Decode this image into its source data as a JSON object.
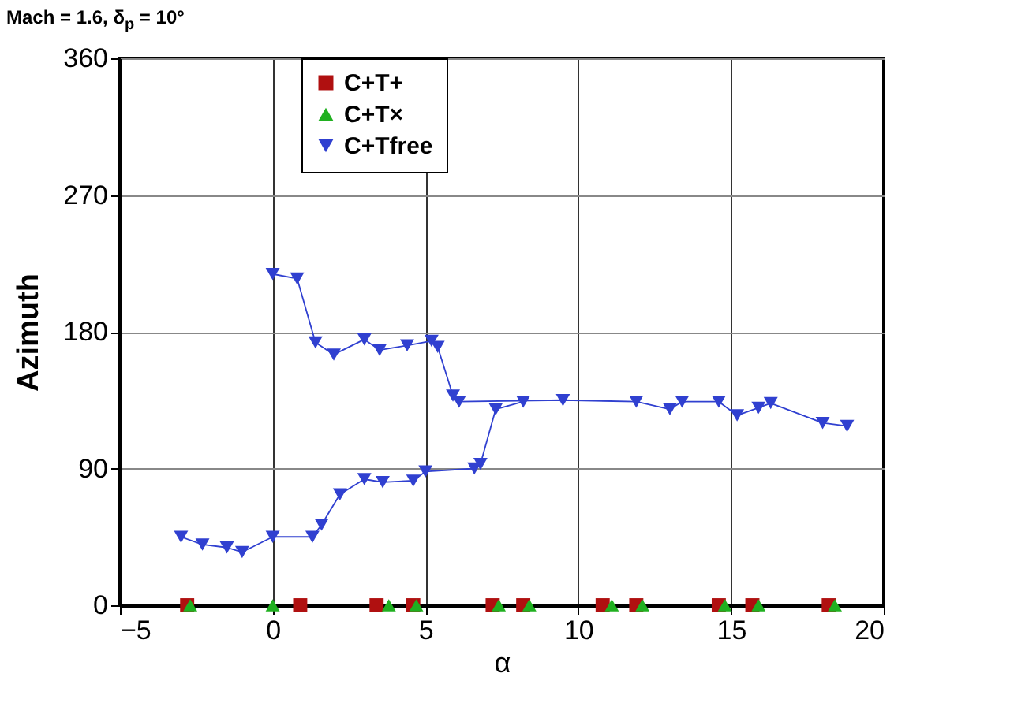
{
  "chart_data": {
    "type": "line",
    "title": "Mach = 1.6, δ$_{p}$ = 10°",
    "xlabel": "α",
    "ylabel": "Azimuth",
    "xlim": [
      -5,
      20
    ],
    "xticks": [
      -5,
      0,
      5,
      10,
      15,
      20
    ],
    "ylim": [
      0,
      360
    ],
    "yticks": [
      0,
      90,
      180,
      270,
      360
    ],
    "grid": true,
    "legend": "top",
    "series": [
      {
        "name": "C+T+",
        "type": "scatter",
        "color": "#b01010",
        "marker": "square",
        "x": [
          -2.8,
          0.9,
          3.4,
          4.6,
          7.2,
          8.2,
          10.8,
          11.9,
          14.6,
          15.7,
          18.2
        ],
        "values": [
          0,
          0,
          0,
          0,
          0,
          0,
          0,
          0,
          0,
          0,
          0
        ]
      },
      {
        "name": "C+T×",
        "type": "scatter",
        "color": "#20b020",
        "marker": "triangle",
        "x": [
          -2.7,
          0,
          3.8,
          4.7,
          7.4,
          8.4,
          11.1,
          12.1,
          14.8,
          15.9,
          18.4
        ],
        "values": [
          0,
          0,
          0,
          0,
          0,
          0,
          0,
          0,
          0,
          0,
          0
        ]
      },
      {
        "name": "C+Tfree",
        "color": "#3040d0",
        "marker": "triangle-down",
        "x": [
          0,
          0.8,
          1.4,
          2,
          3,
          3.5,
          4.4,
          5.2,
          5.4,
          5.9,
          6.1,
          9.5,
          11.9,
          13,
          13.4,
          14.6,
          15.2,
          15.9,
          16.3,
          18,
          18.8
        ],
        "values": [
          218,
          215,
          173,
          165,
          175,
          168,
          171,
          174,
          170,
          138,
          134,
          135,
          134,
          129,
          134,
          134,
          125,
          130,
          133,
          120,
          118
        ]
      },
      {
        "color": "#3040d0",
        "marker": "triangle-down",
        "x": [
          -3,
          -2.3,
          -1.5,
          -1,
          0,
          1.3,
          1.6,
          2.2,
          3,
          3.6,
          4.6,
          5,
          6.6,
          6.8,
          7.3,
          8.2
        ],
        "values": [
          45,
          40,
          38,
          35,
          45,
          45,
          53,
          73,
          83,
          81,
          82,
          88,
          90,
          93,
          129,
          134
        ]
      }
    ]
  }
}
